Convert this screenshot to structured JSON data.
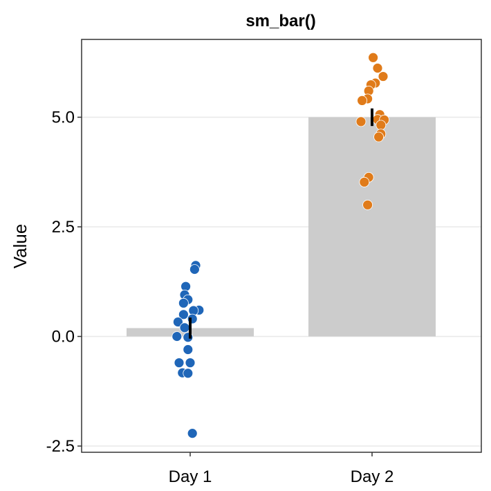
{
  "chart_data": {
    "type": "bar",
    "title": "sm_bar()",
    "xlabel": "",
    "ylabel": "Value",
    "categories": [
      "Day 1",
      "Day 2"
    ],
    "values": [
      0.19,
      5.0
    ],
    "error_bars": [
      {
        "low": -0.05,
        "high": 0.43
      },
      {
        "low": 4.8,
        "high": 5.2
      }
    ],
    "ylim": [
      -2.65,
      6.8
    ],
    "yticks": [
      -2.5,
      0.0,
      2.5,
      5.0
    ],
    "ytick_labels": [
      "-2.5",
      "0.0",
      "2.5",
      "5.0"
    ],
    "grid": "horizontal major",
    "bar_color": "#cccccc",
    "errorbar_color": "#000000",
    "points": [
      {
        "category": "Day 1",
        "color": "#1f66b8",
        "values": [
          {
            "offset": 0.05,
            "y": 1.62
          },
          {
            "offset": 0.04,
            "y": 1.53
          },
          {
            "offset": -0.04,
            "y": 1.14
          },
          {
            "offset": -0.05,
            "y": 0.95
          },
          {
            "offset": -0.02,
            "y": 0.84
          },
          {
            "offset": -0.06,
            "y": 0.76
          },
          {
            "offset": 0.08,
            "y": 0.6
          },
          {
            "offset": 0.03,
            "y": 0.59
          },
          {
            "offset": -0.06,
            "y": 0.5
          },
          {
            "offset": 0.02,
            "y": 0.4
          },
          {
            "offset": -0.11,
            "y": 0.33
          },
          {
            "offset": -0.05,
            "y": 0.2
          },
          {
            "offset": -0.02,
            "y": -0.02
          },
          {
            "offset": -0.12,
            "y": 0.0
          },
          {
            "offset": -0.02,
            "y": -0.3
          },
          {
            "offset": -0.1,
            "y": -0.6
          },
          {
            "offset": 0.0,
            "y": -0.6
          },
          {
            "offset": -0.07,
            "y": -0.83
          },
          {
            "offset": -0.02,
            "y": -0.84
          },
          {
            "offset": 0.02,
            "y": -2.21
          }
        ]
      },
      {
        "category": "Day 2",
        "color": "#e07b1a",
        "values": [
          {
            "offset": 0.01,
            "y": 6.36
          },
          {
            "offset": 0.05,
            "y": 6.12
          },
          {
            "offset": 0.1,
            "y": 5.93
          },
          {
            "offset": 0.03,
            "y": 5.78
          },
          {
            "offset": -0.01,
            "y": 5.74
          },
          {
            "offset": -0.03,
            "y": 5.6
          },
          {
            "offset": -0.04,
            "y": 5.42
          },
          {
            "offset": -0.09,
            "y": 5.38
          },
          {
            "offset": 0.07,
            "y": 5.06
          },
          {
            "offset": 0.05,
            "y": 4.95
          },
          {
            "offset": 0.11,
            "y": 4.94
          },
          {
            "offset": -0.1,
            "y": 4.9
          },
          {
            "offset": 0.08,
            "y": 4.82
          },
          {
            "offset": 0.08,
            "y": 4.62
          },
          {
            "offset": 0.06,
            "y": 4.55
          },
          {
            "offset": -0.03,
            "y": 3.63
          },
          {
            "offset": -0.07,
            "y": 3.52
          },
          {
            "offset": -0.04,
            "y": 3.0
          }
        ]
      }
    ]
  }
}
